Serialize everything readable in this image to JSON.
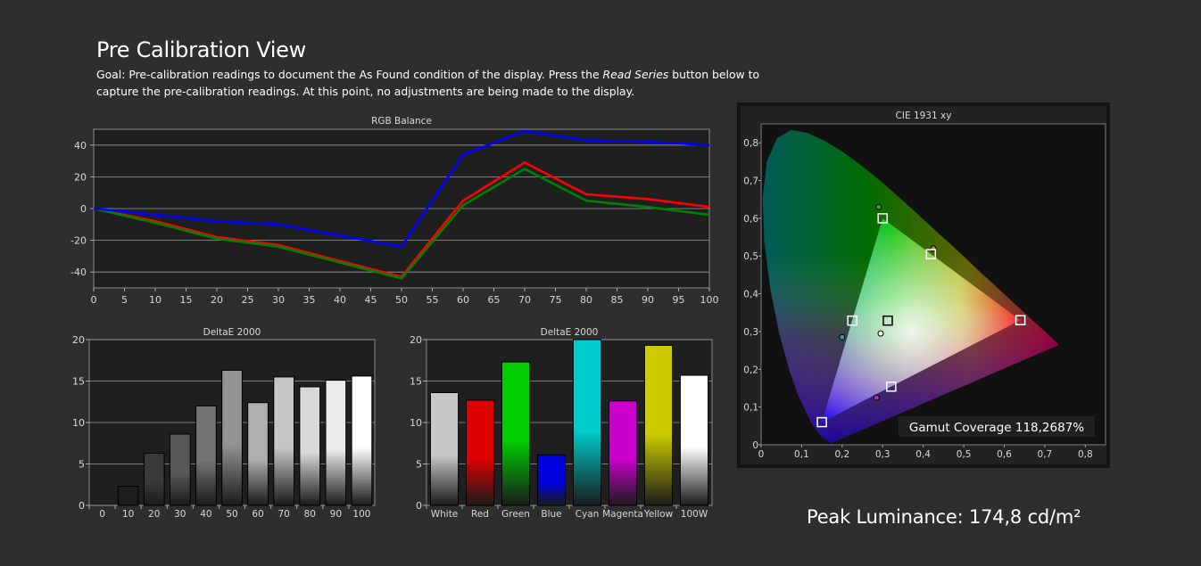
{
  "header": {
    "title": "Pre Calibration View",
    "goal_part1": "Goal: Pre-calibration readings to document the As Found condition of the display. Press the ",
    "goal_italic": "Read Series",
    "goal_part2": " button below to capture the pre-calibration readings. At this point, no adjustments are being made to the display."
  },
  "peak_luminance": "Peak Luminance: 174,8 cd/m²",
  "chart_data": [
    {
      "type": "line",
      "title": "RGB Balance",
      "x": [
        0,
        10,
        20,
        30,
        40,
        50,
        60,
        70,
        80,
        90,
        100
      ],
      "xticks": [
        "0",
        "5",
        "10",
        "15",
        "20",
        "25",
        "30",
        "35",
        "40",
        "45",
        "50",
        "55",
        "60",
        "65",
        "70",
        "75",
        "80",
        "85",
        "90",
        "95",
        "100"
      ],
      "yticks": [
        "40",
        "20",
        "0",
        "-20",
        "-40"
      ],
      "xlim": [
        0,
        100
      ],
      "ylim": [
        -50,
        50
      ],
      "grid": true,
      "series": [
        {
          "color": "#ff0000",
          "values": [
            0,
            -8,
            -18,
            -23,
            -33,
            -43,
            5,
            29,
            9,
            6,
            1
          ]
        },
        {
          "color": "#008000",
          "values": [
            0,
            -9,
            -19,
            -24,
            -34,
            -44,
            2,
            25,
            5,
            1,
            -4
          ]
        },
        {
          "color": "#0000ff",
          "values": [
            0,
            -4,
            -8,
            -10,
            -17,
            -24,
            34,
            49,
            43,
            42,
            40
          ]
        }
      ]
    },
    {
      "type": "bar",
      "title": "DeltaE 2000",
      "categories": [
        "0",
        "10",
        "20",
        "30",
        "40",
        "50",
        "60",
        "70",
        "80",
        "90",
        "100"
      ],
      "values": [
        0,
        2.3,
        6.3,
        8.6,
        12.0,
        16.3,
        12.4,
        15.5,
        14.3,
        15.1,
        15.6
      ],
      "yticks": [
        "20",
        "15",
        "10",
        "5",
        "0"
      ],
      "ylim": [
        0,
        20
      ],
      "grid": true,
      "colors": [
        "#000000",
        "#1e1e1e",
        "#3a3a3a",
        "#575757",
        "#747474",
        "#939393",
        "#afafaf",
        "#c6c6c6",
        "#d9d9d9",
        "#ececec",
        "#ffffff"
      ]
    },
    {
      "type": "bar",
      "title": "DeltaE 2000",
      "categories": [
        "White",
        "Red",
        "Green",
        "Blue",
        "Cyan",
        "Magenta",
        "Yellow",
        "100W"
      ],
      "values": [
        13.6,
        12.7,
        17.3,
        6.1,
        20.0,
        12.6,
        19.3,
        15.7
      ],
      "yticks": [
        "20",
        "15",
        "10",
        "5",
        "0"
      ],
      "ylim": [
        0,
        20
      ],
      "grid": true,
      "colors": [
        "#c8c8c8",
        "#dd0000",
        "#00cc00",
        "#0000dd",
        "#00cccc",
        "#cc00cc",
        "#cccc00",
        "#ffffff"
      ]
    },
    {
      "type": "scatter",
      "title": "CIE 1931 xy",
      "xticks": [
        "0",
        "0,1",
        "0,2",
        "0,3",
        "0,4",
        "0,5",
        "0,6",
        "0,7",
        "0,8"
      ],
      "yticks": [
        "0,8",
        "0,7",
        "0,6",
        "0,5",
        "0,4",
        "0,3",
        "0,2",
        "0,1",
        "0"
      ],
      "xlim": [
        0,
        0.85
      ],
      "ylim": [
        0,
        0.85
      ],
      "targets": [
        {
          "name": "Red",
          "x": 0.64,
          "y": 0.33
        },
        {
          "name": "Green",
          "x": 0.3,
          "y": 0.6
        },
        {
          "name": "Blue",
          "x": 0.15,
          "y": 0.06
        },
        {
          "name": "Yellow",
          "x": 0.419,
          "y": 0.505
        },
        {
          "name": "Cyan",
          "x": 0.225,
          "y": 0.329
        },
        {
          "name": "Magenta",
          "x": 0.321,
          "y": 0.154
        },
        {
          "name": "White",
          "x": 0.3127,
          "y": 0.329
        }
      ],
      "measured": [
        {
          "name": "Green",
          "x": 0.29,
          "y": 0.63,
          "color": "#3a9a3a"
        },
        {
          "name": "Yellow",
          "x": 0.425,
          "y": 0.52,
          "color": "#9a9a2a"
        },
        {
          "name": "Cyan",
          "x": 0.2,
          "y": 0.285,
          "color": "#2aa0a0"
        },
        {
          "name": "Magenta",
          "x": 0.285,
          "y": 0.125,
          "color": "#a03aa0"
        },
        {
          "name": "White",
          "x": 0.295,
          "y": 0.295,
          "color": "#ffffff"
        }
      ],
      "annotation": "Gamut Coverage 118,2687%"
    }
  ]
}
